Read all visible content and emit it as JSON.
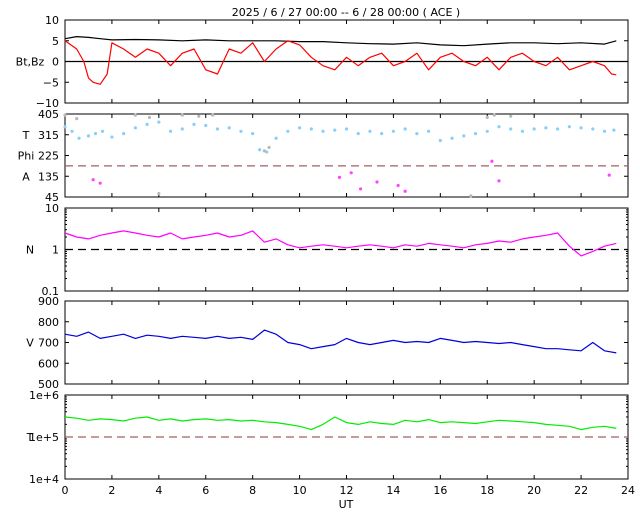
{
  "chart_data": {
    "type": "line",
    "title": "2025 /  6 / 27   00:00 -- 6 / 28   00:00 ( ACE )",
    "xlabel": "UT",
    "xlim": [
      0,
      24
    ],
    "xticks": [
      "0",
      "2",
      "4",
      "6",
      "8",
      "10",
      "12",
      "14",
      "16",
      "18",
      "20",
      "22",
      "24"
    ],
    "legend": "none",
    "grid": false,
    "panels": [
      {
        "id": "bfield",
        "ylabel": "Bt,Bz",
        "scale": "linear",
        "ylim": [
          -10,
          10
        ],
        "yticks": [
          "10",
          "5",
          "0",
          "−5",
          "−10"
        ],
        "reference_line": {
          "value": 0,
          "style": "solid",
          "color": "#000000"
        },
        "series": [
          {
            "color": "#000000",
            "x": [
              0,
              0.5,
              1,
              1.5,
              2,
              3,
              4,
              5,
              6,
              7,
              8,
              9,
              10,
              11,
              12,
              13,
              14,
              15,
              16,
              17,
              18,
              19,
              20,
              21,
              22,
              23,
              23.5
            ],
            "y": [
              5.5,
              6,
              5.8,
              5.5,
              5.2,
              5.3,
              5.2,
              5,
              5.2,
              5,
              5,
              5,
              4.8,
              4.8,
              4.5,
              4.3,
              4.2,
              4.5,
              4,
              3.8,
              4.2,
              4.5,
              4.5,
              4.3,
              4.5,
              4.2,
              5
            ]
          },
          {
            "color": "#ff0000",
            "x": [
              0,
              0.5,
              0.8,
              1,
              1.2,
              1.5,
              1.8,
              2,
              2.5,
              3,
              3.5,
              4,
              4.5,
              5,
              5.5,
              6,
              6.5,
              7,
              7.5,
              8,
              8.5,
              9,
              9.5,
              10,
              10.5,
              11,
              11.5,
              12,
              12.5,
              13,
              13.5,
              14,
              14.5,
              15,
              15.5,
              16,
              16.5,
              17,
              17.5,
              18,
              18.5,
              19,
              19.5,
              20,
              20.5,
              21,
              21.5,
              22,
              22.5,
              23,
              23.3,
              23.5
            ],
            "y": [
              5,
              3,
              0,
              -4,
              -5,
              -5.5,
              -3,
              4.5,
              3,
              1,
              3,
              2,
              -1,
              2,
              3,
              -2,
              -3,
              3,
              2,
              4.5,
              0,
              3,
              5,
              4,
              1,
              -1,
              -2,
              1,
              -1,
              1,
              2,
              -1,
              0,
              2,
              -2,
              1,
              2,
              0,
              -1,
              1,
              -2,
              1,
              2,
              0,
              -1,
              1,
              -2,
              -1,
              0,
              -1,
              -3,
              -3.2
            ]
          }
        ]
      },
      {
        "id": "angles",
        "ylabel_lines": [
          "T",
          "Phi",
          "A"
        ],
        "scale": "linear",
        "ylim": [
          45,
          405
        ],
        "yticks": [
          "405",
          "315",
          "225",
          "135",
          "45"
        ],
        "reference_line": {
          "value": 180,
          "style": "dashed",
          "color": "#a06060"
        },
        "series": [
          {
            "color": "#87cefa",
            "x": [
              0,
              0.3,
              0.6,
              1,
              1.3,
              1.6,
              2,
              2.5,
              3,
              3.5,
              4,
              4.5,
              5,
              5.5,
              6,
              6.5,
              7,
              7.5,
              8,
              8.3,
              8.6,
              9,
              9.5,
              10,
              10.5,
              11,
              11.5,
              12,
              12.5,
              13,
              13.5,
              14,
              14.5,
              15,
              15.5,
              16,
              16.5,
              17,
              17.5,
              18,
              18.5,
              19,
              19.5,
              20,
              20.5,
              21,
              21.5,
              22,
              22.5,
              23,
              23.4
            ],
            "y": [
              350,
              330,
              300,
              310,
              320,
              330,
              305,
              320,
              345,
              360,
              370,
              330,
              340,
              360,
              355,
              340,
              345,
              330,
              320,
              250,
              240,
              300,
              330,
              345,
              340,
              330,
              335,
              340,
              320,
              330,
              320,
              330,
              340,
              320,
              330,
              290,
              300,
              310,
              320,
              330,
              350,
              340,
              330,
              340,
              345,
              340,
              350,
              345,
              340,
              330,
              335
            ]
          },
          {
            "color": "#ff44ff",
            "x": [
              1.2,
              1.5,
              11.7,
              12.2,
              12.6,
              13.3,
              14.2,
              14.5,
              18.2,
              18.5,
              23.2
            ],
            "y": [
              120,
              105,
              130,
              150,
              80,
              110,
              95,
              70,
              200,
              115,
              140
            ]
          },
          {
            "color": "#b8b8b8",
            "x": [
              0,
              0.5,
              3,
              3.6,
              4,
              5,
              5.7,
              6.3,
              8.5,
              8.7,
              17.3,
              18,
              18.3,
              19
            ],
            "y": [
              400,
              385,
              400,
              390,
              60,
              400,
              395,
              400,
              245,
              260,
              50,
              390,
              400,
              395
            ]
          }
        ]
      },
      {
        "id": "density",
        "ylabel": "N",
        "scale": "log",
        "ylim": [
          0.1,
          10
        ],
        "yticks": [
          "10",
          "1",
          "0.1"
        ],
        "reference_line": {
          "value": 1,
          "style": "dashed",
          "color": "#000000"
        },
        "series": [
          {
            "color": "#ff00ff",
            "x": [
              0,
              0.5,
              1,
              1.5,
              2,
              2.5,
              3,
              3.5,
              4,
              4.5,
              5,
              5.5,
              6,
              6.5,
              7,
              7.5,
              8,
              8.5,
              9,
              9.5,
              10,
              10.5,
              11,
              11.5,
              12,
              12.5,
              13,
              13.5,
              14,
              14.5,
              15,
              15.5,
              16,
              16.5,
              17,
              17.5,
              18,
              18.5,
              19,
              19.5,
              20,
              20.5,
              21,
              21.5,
              22,
              22.5,
              23,
              23.5
            ],
            "y": [
              2.5,
              2,
              1.8,
              2.2,
              2.5,
              2.8,
              2.5,
              2.2,
              2,
              2.5,
              1.8,
              2,
              2.2,
              2.5,
              2,
              2.2,
              2.8,
              1.5,
              1.8,
              1.3,
              1.1,
              1.2,
              1.3,
              1.2,
              1.1,
              1.2,
              1.3,
              1.2,
              1.1,
              1.3,
              1.2,
              1.4,
              1.3,
              1.2,
              1.1,
              1.3,
              1.4,
              1.6,
              1.5,
              1.8,
              2,
              2.2,
              2.5,
              1.2,
              0.7,
              0.9,
              1.2,
              1.4
            ]
          }
        ]
      },
      {
        "id": "speed",
        "ylabel": "V",
        "scale": "linear",
        "ylim": [
          500,
          900
        ],
        "yticks": [
          "900",
          "800",
          "700",
          "600",
          "500"
        ],
        "series": [
          {
            "color": "#0000dd",
            "x": [
              0,
              0.5,
              1,
              1.5,
              2,
              2.5,
              3,
              3.5,
              4,
              4.5,
              5,
              5.5,
              6,
              6.5,
              7,
              7.5,
              8,
              8.5,
              9,
              9.5,
              10,
              10.5,
              11,
              11.5,
              12,
              12.5,
              13,
              13.5,
              14,
              14.5,
              15,
              15.5,
              16,
              16.5,
              17,
              17.5,
              18,
              18.5,
              19,
              19.5,
              20,
              20.5,
              21,
              21.5,
              22,
              22.5,
              23,
              23.5
            ],
            "y": [
              740,
              730,
              750,
              720,
              730,
              740,
              720,
              735,
              730,
              720,
              730,
              725,
              720,
              730,
              720,
              725,
              715,
              760,
              740,
              700,
              690,
              670,
              680,
              690,
              720,
              700,
              690,
              700,
              710,
              700,
              705,
              700,
              720,
              710,
              700,
              705,
              700,
              695,
              700,
              690,
              680,
              670,
              670,
              665,
              660,
              700,
              660,
              650
            ]
          }
        ]
      },
      {
        "id": "temperature",
        "ylabel": "T",
        "scale": "log",
        "ylim": [
          10000,
          1000000
        ],
        "yticks": [
          "1e+6",
          "1e+5",
          "1e+4"
        ],
        "reference_line": {
          "value": 100000,
          "style": "dashed",
          "color": "#a06060"
        },
        "series": [
          {
            "color": "#00ee00",
            "x": [
              0,
              0.5,
              1,
              1.5,
              2,
              2.5,
              3,
              3.5,
              4,
              4.5,
              5,
              5.5,
              6,
              6.5,
              7,
              7.5,
              8,
              8.5,
              9,
              9.5,
              10,
              10.5,
              11,
              11.5,
              12,
              12.5,
              13,
              13.5,
              14,
              14.5,
              15,
              15.5,
              16,
              16.5,
              17,
              17.5,
              18,
              18.5,
              19,
              19.5,
              20,
              20.5,
              21,
              21.5,
              22,
              22.5,
              23,
              23.5
            ],
            "y": [
              300000,
              280000,
              250000,
              270000,
              260000,
              240000,
              280000,
              300000,
              250000,
              270000,
              240000,
              260000,
              270000,
              250000,
              260000,
              240000,
              250000,
              230000,
              220000,
              200000,
              180000,
              150000,
              200000,
              300000,
              220000,
              200000,
              230000,
              210000,
              200000,
              250000,
              230000,
              260000,
              220000,
              230000,
              220000,
              210000,
              230000,
              250000,
              240000,
              230000,
              220000,
              200000,
              190000,
              180000,
              150000,
              170000,
              180000,
              160000
            ]
          }
        ]
      }
    ]
  }
}
